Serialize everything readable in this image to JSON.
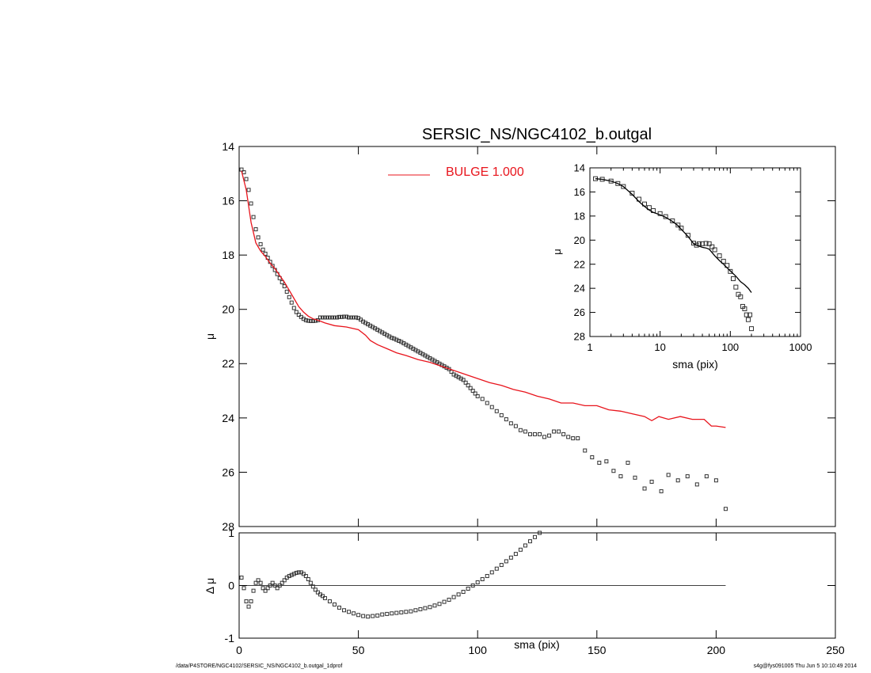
{
  "chart_data": [
    {
      "type": "scatter",
      "title": "SERSIC_NS/NGC4102_b.outgal",
      "xlabel": "",
      "ylabel": "μ",
      "xlim": [
        0,
        250
      ],
      "ylim": [
        28,
        14
      ],
      "y_inverted": true,
      "xticks": [
        "0",
        "50",
        "100",
        "150",
        "200",
        "250"
      ],
      "yticks": [
        "14",
        "16",
        "18",
        "20",
        "22",
        "24",
        "26",
        "28"
      ],
      "legend": {
        "label": "BULGE  1.000",
        "placement": "top-center"
      },
      "colors": {
        "model": "#e8141c",
        "data": "#333333"
      },
      "series": [
        {
          "kind": "points",
          "x": [
            1,
            2,
            3,
            4,
            5,
            6,
            7,
            8,
            9,
            10,
            11,
            12,
            13,
            14,
            15,
            16,
            17,
            18,
            19,
            20,
            21,
            22,
            23,
            24,
            25,
            26,
            27,
            28,
            29,
            30,
            31,
            32,
            33,
            34,
            35,
            36,
            37,
            38,
            39,
            40,
            41,
            42,
            43,
            44,
            45,
            46,
            47,
            48,
            49,
            50,
            51,
            52,
            53,
            54,
            55,
            56,
            57,
            58,
            59,
            60,
            61,
            62,
            63,
            64,
            65,
            66,
            67,
            68,
            69,
            70,
            71,
            72,
            73,
            74,
            75,
            76,
            77,
            78,
            79,
            80,
            81,
            82,
            83,
            84,
            85,
            86,
            87,
            88,
            89,
            90,
            91,
            92,
            93,
            94,
            95,
            96,
            97,
            98,
            99,
            100,
            102,
            104,
            106,
            108,
            110,
            112,
            114,
            116,
            118,
            120,
            122,
            124,
            126,
            128,
            130,
            132,
            134,
            136,
            138,
            140,
            142,
            145,
            148,
            151,
            154,
            157,
            160,
            163,
            166,
            170,
            173,
            177,
            180,
            184,
            188,
            192,
            196,
            200,
            204
          ],
          "y": [
            14.85,
            14.95,
            15.2,
            15.6,
            16.1,
            16.6,
            17.05,
            17.35,
            17.6,
            17.8,
            17.95,
            18.1,
            18.25,
            18.4,
            18.55,
            18.7,
            18.85,
            19.0,
            19.15,
            19.35,
            19.55,
            19.75,
            19.95,
            20.1,
            20.2,
            20.28,
            20.35,
            20.4,
            20.42,
            20.43,
            20.43,
            20.42,
            20.4,
            20.3,
            20.3,
            20.3,
            20.3,
            20.3,
            20.3,
            20.3,
            20.3,
            20.28,
            20.28,
            20.27,
            20.27,
            20.3,
            20.3,
            20.3,
            20.3,
            20.32,
            20.38,
            20.45,
            20.5,
            20.55,
            20.6,
            20.65,
            20.7,
            20.75,
            20.8,
            20.85,
            20.9,
            20.95,
            21.0,
            21.05,
            21.08,
            21.12,
            21.16,
            21.2,
            21.25,
            21.3,
            21.35,
            21.4,
            21.45,
            21.5,
            21.55,
            21.6,
            21.65,
            21.7,
            21.75,
            21.8,
            21.85,
            21.9,
            21.95,
            22.0,
            22.05,
            22.1,
            22.15,
            22.2,
            22.3,
            22.4,
            22.45,
            22.5,
            22.55,
            22.6,
            22.7,
            22.8,
            22.9,
            23.0,
            23.1,
            23.2,
            23.3,
            23.45,
            23.6,
            23.75,
            23.9,
            24.05,
            24.2,
            24.3,
            24.45,
            24.5,
            24.6,
            24.6,
            24.6,
            24.7,
            24.65,
            24.5,
            24.5,
            24.6,
            24.7,
            24.75,
            24.75,
            25.2,
            25.45,
            25.65,
            25.6,
            25.95,
            26.15,
            25.65,
            26.2,
            26.6,
            26.35,
            26.7,
            26.1,
            26.3,
            26.15,
            26.45,
            26.15,
            26.3,
            27.35
          ],
          "name": ""
        },
        {
          "kind": "line",
          "color": "#e8141c",
          "x": [
            1,
            3,
            5,
            7,
            9,
            11,
            13,
            15,
            17,
            19,
            21,
            23,
            25,
            27,
            29,
            31,
            33,
            36,
            40,
            45,
            50,
            53,
            55,
            58,
            62,
            66,
            70,
            75,
            80,
            85,
            90,
            95,
            100,
            105,
            110,
            115,
            120,
            125,
            130,
            135,
            140,
            145,
            150,
            155,
            160,
            165,
            170,
            173,
            176,
            180,
            185,
            190,
            195,
            198,
            200,
            204
          ],
          "y": [
            14.9,
            15.6,
            16.8,
            17.55,
            17.85,
            18.05,
            18.3,
            18.5,
            18.75,
            19.0,
            19.3,
            19.6,
            19.9,
            20.1,
            20.25,
            20.35,
            20.4,
            20.5,
            20.6,
            20.65,
            20.75,
            20.95,
            21.15,
            21.3,
            21.45,
            21.6,
            21.7,
            21.85,
            21.95,
            22.1,
            22.25,
            22.4,
            22.55,
            22.7,
            22.8,
            22.95,
            23.05,
            23.2,
            23.3,
            23.45,
            23.45,
            23.55,
            23.55,
            23.7,
            23.75,
            23.85,
            23.95,
            24.1,
            23.95,
            24.05,
            23.95,
            24.05,
            24.05,
            24.3,
            24.3,
            24.35
          ],
          "name": "BULGE  1.000"
        }
      ]
    },
    {
      "type": "scatter",
      "title": "",
      "xlabel": "sma (pix)",
      "ylabel": "Δ μ",
      "xlim": [
        0,
        250
      ],
      "ylim": [
        -1,
        1
      ],
      "xticks": [
        "0",
        "50",
        "100",
        "150",
        "200",
        "250"
      ],
      "yticks": [
        "1",
        "0",
        "-1"
      ],
      "reference_line": 0,
      "series": [
        {
          "kind": "points",
          "x": [
            1,
            2,
            3,
            4,
            5,
            6,
            7,
            8,
            9,
            10,
            11,
            12,
            13,
            14,
            15,
            16,
            17,
            18,
            19,
            20,
            21,
            22,
            23,
            24,
            25,
            26,
            27,
            28,
            29,
            30,
            31,
            32,
            33,
            34,
            35,
            36,
            38,
            40,
            42,
            44,
            46,
            48,
            50,
            52,
            54,
            56,
            58,
            60,
            62,
            64,
            66,
            68,
            70,
            72,
            74,
            76,
            78,
            80,
            82,
            84,
            86,
            88,
            90,
            92,
            94,
            96,
            98,
            100,
            102,
            104,
            106,
            108,
            110,
            112,
            114,
            116,
            118,
            120,
            122,
            124,
            126
          ],
          "y": [
            0.15,
            -0.05,
            -0.3,
            -0.4,
            -0.3,
            -0.1,
            0.05,
            0.1,
            0.05,
            -0.05,
            -0.1,
            -0.05,
            0.0,
            0.05,
            0.0,
            -0.05,
            0.0,
            0.05,
            0.1,
            0.15,
            0.18,
            0.2,
            0.22,
            0.24,
            0.25,
            0.25,
            0.22,
            0.18,
            0.12,
            0.05,
            -0.02,
            -0.08,
            -0.13,
            -0.17,
            -0.2,
            -0.24,
            -0.3,
            -0.36,
            -0.42,
            -0.47,
            -0.5,
            -0.53,
            -0.56,
            -0.58,
            -0.59,
            -0.58,
            -0.57,
            -0.55,
            -0.54,
            -0.53,
            -0.52,
            -0.51,
            -0.5,
            -0.49,
            -0.47,
            -0.45,
            -0.43,
            -0.41,
            -0.38,
            -0.35,
            -0.31,
            -0.27,
            -0.22,
            -0.17,
            -0.12,
            -0.06,
            0.0,
            0.06,
            0.12,
            0.18,
            0.25,
            0.32,
            0.39,
            0.46,
            0.53,
            0.6,
            0.68,
            0.76,
            0.84,
            0.92,
            1.0
          ]
        }
      ]
    },
    {
      "type": "scatter",
      "title": "",
      "xlabel": "sma (pix)",
      "ylabel": "μ",
      "x_scale": "log",
      "xlim": [
        1,
        1000
      ],
      "ylim": [
        28,
        14
      ],
      "xticks": [
        "1",
        "10",
        "100",
        "1000"
      ],
      "yticks": [
        "14",
        "16",
        "18",
        "20",
        "22",
        "24",
        "26",
        "28"
      ],
      "placement": "inset top-right",
      "series": [
        {
          "kind": "points",
          "x": [
            1.2,
            1.5,
            2,
            2.5,
            3,
            4,
            5,
            6,
            7,
            8,
            10,
            12,
            15,
            18,
            20,
            25,
            30,
            33,
            36,
            40,
            45,
            50,
            55,
            60,
            70,
            80,
            90,
            100,
            110,
            120,
            130,
            140,
            150,
            160,
            170,
            180,
            190,
            200
          ],
          "y": [
            14.9,
            14.95,
            15.1,
            15.3,
            15.55,
            16.1,
            16.6,
            17.0,
            17.3,
            17.55,
            17.8,
            18.05,
            18.4,
            18.75,
            19.0,
            19.6,
            20.25,
            20.42,
            20.3,
            20.3,
            20.27,
            20.3,
            20.55,
            20.8,
            21.3,
            21.75,
            22.1,
            22.6,
            23.2,
            23.9,
            24.5,
            24.7,
            25.5,
            25.7,
            26.2,
            26.6,
            26.2,
            27.35
          ]
        },
        {
          "kind": "line",
          "x": [
            1.2,
            1.5,
            2,
            2.5,
            3,
            4,
            5,
            6,
            7,
            8,
            10,
            12,
            15,
            18,
            20,
            25,
            30,
            33,
            36,
            40,
            45,
            50,
            60,
            70,
            80,
            90,
            100,
            120,
            140,
            160,
            180,
            200
          ],
          "y": [
            14.9,
            14.95,
            15.1,
            15.3,
            15.55,
            16.2,
            16.8,
            17.2,
            17.5,
            17.7,
            17.9,
            18.1,
            18.45,
            18.8,
            19.1,
            19.7,
            20.3,
            20.42,
            20.5,
            20.6,
            20.65,
            20.75,
            21.3,
            21.7,
            22.0,
            22.3,
            22.55,
            23.0,
            23.45,
            23.7,
            24.0,
            24.35
          ]
        }
      ]
    }
  ],
  "footer": {
    "path": "/data/P4STORE/NGC4102/SERSIC_NS/NGC4102_b.outgal_1dprof",
    "stamp": "s4g@fys091005  Thu Jun  5 10:10:49 2014"
  }
}
